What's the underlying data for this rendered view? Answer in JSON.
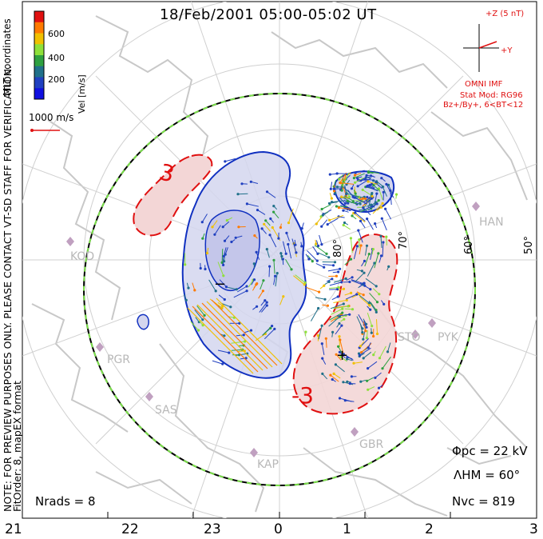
{
  "title": "18/Feb/2001 05:00-05:02 UT",
  "colorbar": {
    "label": "Vel [m/s]",
    "ticks": [
      "600",
      "400",
      "200"
    ],
    "colors": [
      "#e01010",
      "#ff7a00",
      "#f0c000",
      "#8ee03a",
      "#2ea040",
      "#20708a",
      "#2040c0",
      "#1010e0"
    ]
  },
  "coordinate_label": "MLT coordinates",
  "velocity_scale_label": "1000 m/s",
  "preview_notice": "NOTE: FOR PREVIEW PURPOSES ONLY. PLEASE CONTACT VT-SD STAFF FOR VERIFICATION.",
  "fit_order": "FitOrder: 8, mapEX format",
  "imf": {
    "z_label": "+Z (5 nT)",
    "y_label": "+Y",
    "source": "OMNI IMF",
    "model": "Stat Mod: RG96",
    "model_params": "Bz+/By+, 6<BT<12"
  },
  "stats": {
    "phi_pc": "Φpc = 22 kV",
    "lambda_hm": "ΛHM = 60°",
    "n_vc": "Nvc = 819",
    "n_rads": "Nrads = 8"
  },
  "latitude_labels": [
    "80°",
    "70°",
    "60°",
    "50°"
  ],
  "radars": [
    "HAN",
    "KOD",
    "PGR",
    "SAS",
    "KAP",
    "GBR",
    "STO",
    "PYK"
  ],
  "contour_labels": [
    "3",
    "-3",
    "+",
    "−"
  ],
  "mlt_ticks": [
    "21",
    "22",
    "23",
    "0",
    "1",
    "2",
    "3"
  ],
  "colors": {
    "positive_cell": "#e01010",
    "negative_cell": "#1030c0",
    "boundary": "#7be04a"
  }
}
